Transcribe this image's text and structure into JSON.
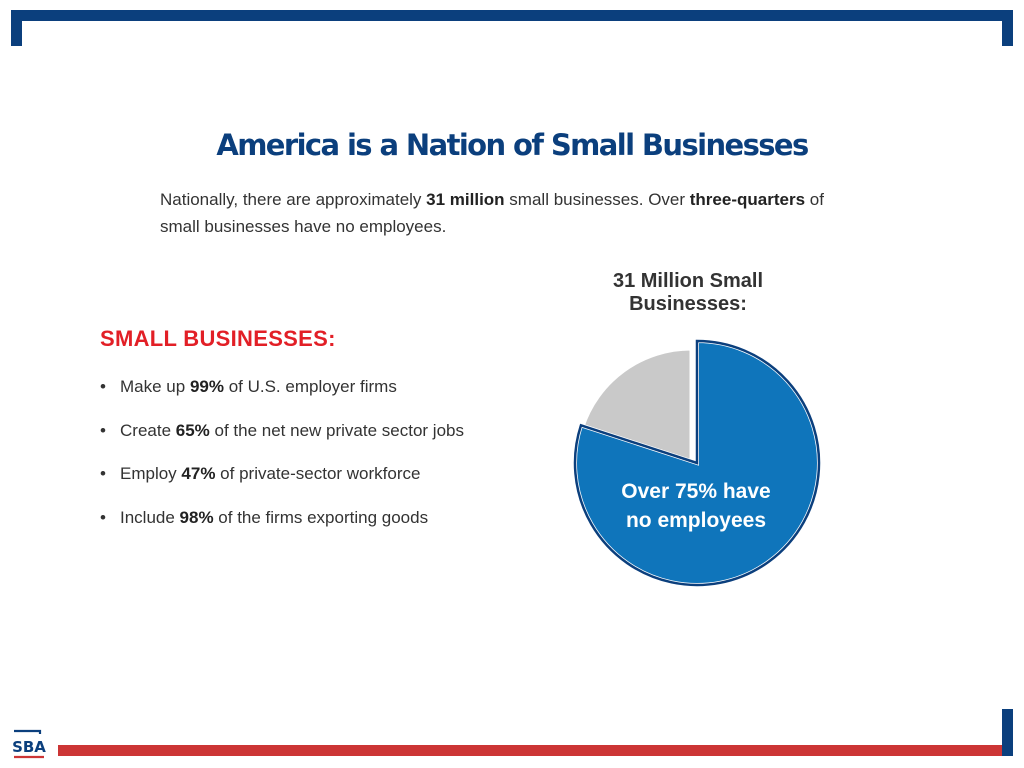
{
  "page": {
    "title": "America is a Nation of Small Businesses",
    "intro": {
      "part1": "Nationally, there are approximately ",
      "bold1": "31 million",
      "part2": " small businesses. Over ",
      "bold2": "three-quarters",
      "part3": " of small businesses have no employees."
    }
  },
  "section": {
    "heading": "SMALL BUSINESSES:",
    "bullets": [
      {
        "pre": "Make up ",
        "value": "99%",
        "post": " of U.S. employer firms"
      },
      {
        "pre": "Create ",
        "value": "65%",
        "post": " of the net new private sector jobs"
      },
      {
        "pre": "Employ ",
        "value": "47%",
        "post": " of private-sector workforce"
      },
      {
        "pre": "Include ",
        "value": "98%",
        "post": " of the firms exporting goods"
      }
    ]
  },
  "logo": {
    "text": "SBA"
  },
  "colors": {
    "brand_blue": "#0b3f7d",
    "brand_red": "#cc3535",
    "heading_red": "#e21f26",
    "pie_blue": "#0f75bb",
    "pie_gray": "#c9c9c9"
  },
  "chart_data": {
    "type": "pie",
    "title": "31 Million Small Businesses:",
    "slices": [
      {
        "label_line1": "Over 75% have",
        "label_line2": "no employees",
        "value": 80
      },
      {
        "label_line1": "",
        "label_line2": "",
        "value": 20
      }
    ]
  }
}
